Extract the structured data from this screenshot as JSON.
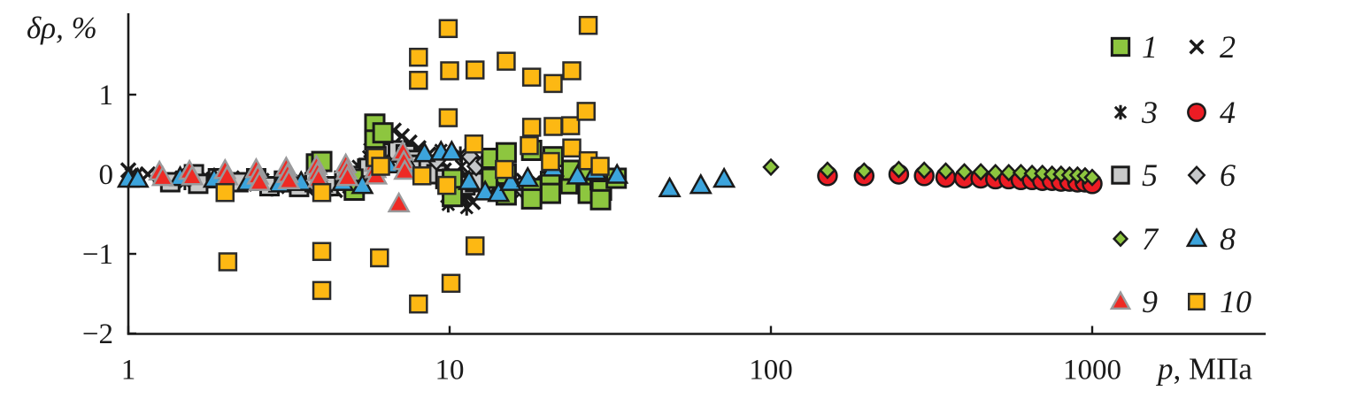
{
  "page": {
    "background": "#ffffff"
  },
  "chart_data": {
    "type": "scatter",
    "title": "",
    "x_scale": "log",
    "xlabel_italic": "p",
    "xlabel_rest": ", МПа",
    "ylabel": "δρ, %",
    "xlim": [
      1,
      3500
    ],
    "ylim": [
      -2,
      2
    ],
    "grid": false,
    "legend_position": "top-right",
    "x_ticks": [
      {
        "value": 1,
        "label": "1"
      },
      {
        "value": 10,
        "label": "10"
      },
      {
        "value": 100,
        "label": "100"
      },
      {
        "value": 1000,
        "label": "1000"
      }
    ],
    "y_ticks": [
      {
        "value": 1,
        "label": "1"
      },
      {
        "value": 0,
        "label": "0"
      },
      {
        "value": -1,
        "label": "−1"
      },
      {
        "value": -2,
        "label": "−2"
      }
    ],
    "draw_order": [
      2,
      3,
      5,
      6,
      1,
      8,
      9,
      10,
      4,
      7
    ],
    "series": [
      {
        "id": 1,
        "label": "1",
        "marker": "square",
        "fill": "#8dc63f",
        "stroke": "#1a1a1a",
        "stroke_width": 3,
        "size": 21,
        "points": [
          [
            3.85,
            0.13
          ],
          [
            4.0,
            0.16
          ],
          [
            5.0,
            -0.06
          ],
          [
            5.05,
            -0.2
          ],
          [
            5.85,
            0.63
          ],
          [
            5.85,
            0.43
          ],
          [
            6.2,
            0.52
          ],
          [
            5.9,
            0.22
          ],
          [
            10.2,
            -0.06
          ],
          [
            10.2,
            -0.28
          ],
          [
            13.5,
            0.2
          ],
          [
            13.5,
            -0.05
          ],
          [
            15,
            0.27
          ],
          [
            15,
            0.0
          ],
          [
            15,
            -0.26
          ],
          [
            18,
            0.3
          ],
          [
            18,
            -0.18
          ],
          [
            18,
            -0.31
          ],
          [
            20.6,
            -0.09
          ],
          [
            20.6,
            -0.24
          ],
          [
            21,
            0.22
          ],
          [
            23.8,
            -0.12
          ],
          [
            24,
            0.05
          ],
          [
            26.6,
            -0.12
          ],
          [
            27,
            -0.24
          ],
          [
            27,
            0.05
          ],
          [
            29.4,
            -0.07
          ],
          [
            29.7,
            -0.2
          ],
          [
            29.5,
            -0.32
          ],
          [
            33,
            -0.05
          ]
        ]
      },
      {
        "id": 2,
        "label": "2",
        "marker": "x",
        "fill": "none",
        "stroke": "#1a1a1a",
        "stroke_width": 3.5,
        "size": 16,
        "points": [
          [
            1.0,
            0.05
          ],
          [
            1.05,
            -0.02
          ],
          [
            1.15,
            0.0
          ],
          [
            1.35,
            -0.05
          ],
          [
            1.55,
            -0.02
          ],
          [
            1.8,
            -0.08
          ],
          [
            2.1,
            -0.05
          ],
          [
            2.3,
            -0.12
          ],
          [
            2.6,
            -0.08
          ],
          [
            2.9,
            -0.15
          ],
          [
            3.2,
            -0.1
          ],
          [
            3.6,
            -0.18
          ],
          [
            4.0,
            -0.12
          ],
          [
            4.4,
            -0.2
          ],
          [
            4.9,
            -0.15
          ],
          [
            5.4,
            0.05
          ],
          [
            5.7,
            0.3
          ],
          [
            6.0,
            0.42
          ],
          [
            6.3,
            0.5
          ],
          [
            6.7,
            0.55
          ],
          [
            7.1,
            0.48
          ],
          [
            7.5,
            0.4
          ],
          [
            8.0,
            0.33
          ],
          [
            8.6,
            0.25
          ],
          [
            9.2,
            0.15
          ],
          [
            9.6,
            0.05
          ],
          [
            9.8,
            -0.1
          ],
          [
            10.0,
            -0.2
          ],
          [
            10.3,
            -0.3
          ],
          [
            10.6,
            -0.15
          ],
          [
            11.0,
            -0.05
          ],
          [
            11.4,
            -0.25
          ],
          [
            11.8,
            -0.35
          ],
          [
            12.4,
            -0.15
          ],
          [
            13.5,
            -0.1
          ],
          [
            15.0,
            -0.12
          ],
          [
            17.0,
            -0.08
          ],
          [
            19.0,
            -0.12
          ],
          [
            21.0,
            -0.08
          ],
          [
            24.0,
            -0.05
          ]
        ]
      },
      {
        "id": 3,
        "label": "3",
        "marker": "asterisk",
        "fill": "none",
        "stroke": "#1a1a1a",
        "stroke_width": 3,
        "size": 18,
        "points": [
          [
            1.02,
            0.0
          ],
          [
            1.25,
            -0.04
          ],
          [
            1.5,
            -0.1
          ],
          [
            1.7,
            -0.05
          ],
          [
            2.0,
            -0.1
          ],
          [
            2.4,
            -0.06
          ],
          [
            2.8,
            -0.18
          ],
          [
            3.1,
            -0.05
          ],
          [
            3.5,
            -0.15
          ],
          [
            3.9,
            -0.08
          ],
          [
            4.3,
            -0.18
          ],
          [
            4.8,
            -0.1
          ],
          [
            5.2,
            0.1
          ],
          [
            5.6,
            0.22
          ],
          [
            5.9,
            0.35
          ],
          [
            6.2,
            0.45
          ],
          [
            6.6,
            0.35
          ],
          [
            7.0,
            0.28
          ],
          [
            7.6,
            0.2
          ],
          [
            8.2,
            0.12
          ],
          [
            8.8,
            0.05
          ],
          [
            9.4,
            0.3
          ],
          [
            9.5,
            0.15
          ],
          [
            9.6,
            0.0
          ],
          [
            9.7,
            -0.15
          ],
          [
            9.8,
            -0.28
          ],
          [
            9.9,
            -0.38
          ],
          [
            10.8,
            0.25
          ],
          [
            10.9,
            0.1
          ],
          [
            11.0,
            -0.05
          ],
          [
            11.1,
            -0.2
          ],
          [
            11.2,
            -0.32
          ],
          [
            11.3,
            -0.42
          ],
          [
            12.8,
            -0.2
          ],
          [
            14.0,
            -0.15
          ],
          [
            16.0,
            -0.1
          ],
          [
            18.0,
            -0.15
          ]
        ]
      },
      {
        "id": 4,
        "label": "4",
        "marker": "circle",
        "fill": "#ec1c24",
        "stroke": "#1a1a1a",
        "stroke_width": 2.5,
        "size": 21,
        "points": [
          [
            150,
            -0.02
          ],
          [
            195,
            -0.02
          ],
          [
            250,
            0.0
          ],
          [
            300,
            -0.02
          ],
          [
            350,
            -0.04
          ],
          [
            400,
            -0.05
          ],
          [
            450,
            -0.05
          ],
          [
            500,
            -0.06
          ],
          [
            550,
            -0.06
          ],
          [
            600,
            -0.07
          ],
          [
            650,
            -0.07
          ],
          [
            700,
            -0.08
          ],
          [
            750,
            -0.08
          ],
          [
            800,
            -0.09
          ],
          [
            850,
            -0.09
          ],
          [
            900,
            -0.1
          ],
          [
            950,
            -0.1
          ],
          [
            1000,
            -0.12
          ]
        ]
      },
      {
        "id": 5,
        "label": "5",
        "marker": "square",
        "fill": "#c9caca",
        "stroke": "#1a1a1a",
        "stroke_width": 3,
        "size": 20,
        "points": [
          [
            1.35,
            -0.1
          ],
          [
            1.6,
            0.0
          ],
          [
            1.65,
            -0.12
          ],
          [
            1.9,
            -0.05
          ],
          [
            2.2,
            -0.1
          ],
          [
            2.5,
            -0.05
          ],
          [
            2.75,
            -0.15
          ],
          [
            3.05,
            -0.08
          ],
          [
            3.4,
            -0.16
          ],
          [
            3.8,
            -0.1
          ],
          [
            4.2,
            -0.15
          ],
          [
            4.7,
            -0.08
          ],
          [
            5.2,
            -0.02
          ],
          [
            5.6,
            0.08
          ],
          [
            6.1,
            0.18
          ],
          [
            6.5,
            0.27
          ],
          [
            6.9,
            0.3
          ],
          [
            7.3,
            0.25
          ],
          [
            7.7,
            0.18
          ],
          [
            8.1,
            0.12
          ],
          [
            8.6,
            0.06
          ],
          [
            9.1,
            0.0
          ],
          [
            9.7,
            -0.06
          ],
          [
            10.4,
            -0.1
          ],
          [
            11.2,
            -0.14
          ],
          [
            12.0,
            -0.1
          ]
        ]
      },
      {
        "id": 6,
        "label": "6",
        "marker": "diamond",
        "fill": "#c6c8ca",
        "stroke": "#1a1a1a",
        "stroke_width": 2.5,
        "size": 19,
        "points": [
          [
            9.1,
            0.17
          ],
          [
            11.6,
            0.22
          ],
          [
            12.1,
            0.1
          ],
          [
            12.9,
            0.16
          ],
          [
            13.8,
            0.04
          ],
          [
            14.4,
            -0.07
          ],
          [
            15.2,
            -0.16
          ],
          [
            16.1,
            -0.18
          ],
          [
            17.0,
            -0.2
          ],
          [
            18.0,
            -0.17
          ],
          [
            19.0,
            -0.14
          ],
          [
            20.0,
            -0.16
          ],
          [
            21.5,
            -0.13
          ]
        ]
      },
      {
        "id": 7,
        "label": "7",
        "marker": "diamond",
        "fill": "#8dc63f",
        "stroke": "#1a1a1a",
        "stroke_width": 2.5,
        "size": 16,
        "points": [
          [
            100,
            0.09
          ],
          [
            150,
            0.05
          ],
          [
            195,
            0.04
          ],
          [
            250,
            0.06
          ],
          [
            300,
            0.05
          ],
          [
            350,
            0.04
          ],
          [
            400,
            0.03
          ],
          [
            450,
            0.03
          ],
          [
            500,
            0.02
          ],
          [
            550,
            0.02
          ],
          [
            600,
            0.02
          ],
          [
            650,
            0.01
          ],
          [
            700,
            0.01
          ],
          [
            750,
            0.0
          ],
          [
            800,
            0.0
          ],
          [
            850,
            -0.01
          ],
          [
            900,
            -0.01
          ],
          [
            950,
            -0.02
          ],
          [
            1000,
            -0.04
          ]
        ]
      },
      {
        "id": 8,
        "label": "8",
        "marker": "triangle",
        "fill": "#3ca4dc",
        "stroke": "#1a1a1a",
        "stroke_width": 2.5,
        "size": 22,
        "points": [
          [
            1.0,
            -0.06
          ],
          [
            1.07,
            -0.06
          ],
          [
            1.45,
            -0.04
          ],
          [
            1.85,
            -0.06
          ],
          [
            2.35,
            -0.1
          ],
          [
            2.95,
            -0.12
          ],
          [
            3.45,
            -0.1
          ],
          [
            4.0,
            -0.12
          ],
          [
            4.65,
            -0.1
          ],
          [
            5.35,
            -0.14
          ],
          [
            6.45,
            0.12
          ],
          [
            7.45,
            0.1
          ],
          [
            8.35,
            0.26
          ],
          [
            9.4,
            0.28
          ],
          [
            10.15,
            0.28
          ],
          [
            11.5,
            -0.09
          ],
          [
            12.9,
            -0.22
          ],
          [
            14.2,
            -0.24
          ],
          [
            15.5,
            -0.1
          ],
          [
            17.5,
            -0.05
          ],
          [
            21.0,
            0.08
          ],
          [
            25.0,
            -0.02
          ],
          [
            28.5,
            0.04
          ],
          [
            33.2,
            -0.01
          ],
          [
            48.4,
            -0.18
          ],
          [
            60.5,
            -0.14
          ],
          [
            71.5,
            -0.06
          ]
        ]
      },
      {
        "id": 9,
        "label": "9",
        "marker": "triangle",
        "fill": "#ee2a24",
        "stroke": "#9a9a9c",
        "stroke_width": 2.5,
        "size": 22,
        "points": [
          [
            1.25,
            0.03
          ],
          [
            1.28,
            -0.04
          ],
          [
            1.55,
            0.04
          ],
          [
            1.58,
            -0.03
          ],
          [
            2.0,
            0.05
          ],
          [
            2.03,
            -0.03
          ],
          [
            2.5,
            0.06
          ],
          [
            2.53,
            -0.02
          ],
          [
            2.56,
            -0.1
          ],
          [
            3.1,
            0.08
          ],
          [
            3.13,
            0.0
          ],
          [
            3.16,
            -0.08
          ],
          [
            3.85,
            0.1
          ],
          [
            3.88,
            0.02
          ],
          [
            3.91,
            -0.06
          ],
          [
            4.75,
            0.12
          ],
          [
            4.78,
            0.04
          ],
          [
            4.81,
            -0.04
          ],
          [
            5.85,
            0.14
          ],
          [
            5.88,
            0.06
          ],
          [
            5.91,
            -0.02
          ],
          [
            7.15,
            0.28
          ],
          [
            7.2,
            0.16
          ],
          [
            7.25,
            0.04
          ],
          [
            6.95,
            -0.37
          ]
        ]
      },
      {
        "id": 10,
        "label": "10",
        "marker": "square",
        "fill": "#fdb813",
        "stroke": "#2b2b2b",
        "stroke_width": 2.5,
        "size": 19,
        "points": [
          [
            2.0,
            -0.23
          ],
          [
            2.04,
            -1.1
          ],
          [
            4.0,
            -0.23
          ],
          [
            4.0,
            -0.97
          ],
          [
            4.0,
            -1.46
          ],
          [
            5.9,
            0.21
          ],
          [
            6.05,
            -1.05
          ],
          [
            6.1,
            0.1
          ],
          [
            8.0,
            1.47
          ],
          [
            8.0,
            1.18
          ],
          [
            8.0,
            -1.63
          ],
          [
            8.2,
            -0.02
          ],
          [
            9.9,
            1.83
          ],
          [
            9.9,
            0.71
          ],
          [
            9.8,
            -0.14
          ],
          [
            10.1,
            -1.37
          ],
          [
            10.0,
            1.3
          ],
          [
            12.0,
            1.31
          ],
          [
            12.0,
            -0.9
          ],
          [
            11.9,
            0.38
          ],
          [
            14.8,
            0.06
          ],
          [
            15.0,
            1.42
          ],
          [
            17.7,
            0.36
          ],
          [
            18.0,
            1.22
          ],
          [
            18.0,
            0.59
          ],
          [
            20.6,
            0.16
          ],
          [
            21.0,
            1.14
          ],
          [
            21.0,
            0.6
          ],
          [
            23.8,
            0.61
          ],
          [
            24.0,
            1.3
          ],
          [
            24.0,
            0.33
          ],
          [
            26.6,
            0.79
          ],
          [
            27.0,
            1.87
          ],
          [
            27.0,
            0.17
          ],
          [
            29.4,
            0.1
          ]
        ]
      }
    ],
    "legend": {
      "rows": [
        [
          "1",
          "2"
        ],
        [
          "3",
          "4"
        ],
        [
          "5",
          "6"
        ],
        [
          "7",
          "8"
        ],
        [
          "9",
          "10"
        ]
      ]
    }
  }
}
